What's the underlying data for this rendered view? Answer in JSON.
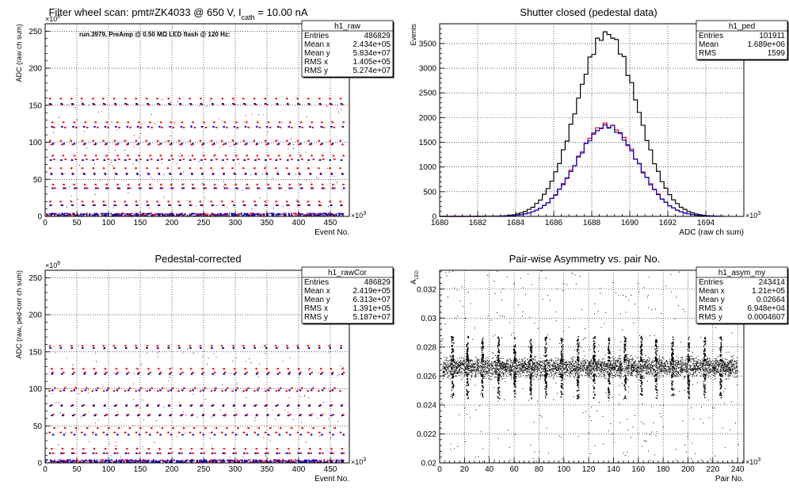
{
  "chart_data": [
    {
      "type": "scatter",
      "title": "Filter wheel scan: pmt#ZK4033 @   650 V, I",
      "title_sub": "cath",
      "title_tail": " = 10.00 nA",
      "annotation": "run.3979, PreAmp @ 0.50 MΩ LED flash @  120 Hz:",
      "xlabel": "Event No.",
      "ylabel": "ADC (raw ch sum)",
      "x_exponent": "×10",
      "x_exponent_power": "3",
      "y_exponent": "×10",
      "y_exponent_power": "6",
      "xlim": [
        0,
        480
      ],
      "ylim": [
        0,
        260
      ],
      "xticks": [
        "0",
        "50",
        "100",
        "150",
        "200",
        "250",
        "300",
        "350",
        "400",
        "450"
      ],
      "yticks": [
        "0",
        "50",
        "100",
        "150",
        "200",
        "250"
      ],
      "grid": true,
      "stats": {
        "name": "h1_raw",
        "rows": [
          {
            "label": "Entries",
            "value": "486829"
          },
          {
            "label": "Mean x",
            "value": "2.434e+05"
          },
          {
            "label": "Mean y",
            "value": "5.834e+07"
          },
          {
            "label": "RMS x",
            "value": "1.405e+05"
          },
          {
            "label": "RMS y",
            "value": "5.274e+07"
          }
        ]
      },
      "levels_red": [
        159,
        151,
        127,
        120,
        102,
        97,
        82,
        77,
        65,
        58,
        43,
        38,
        20,
        15
      ],
      "levels_blue": [
        152,
        121,
        98,
        76,
        57,
        38,
        15,
        3
      ],
      "series_colors": {
        "red": "#ff0000",
        "blue": "#0000cc"
      }
    },
    {
      "type": "line",
      "title": "Shutter closed (pedestal data)",
      "xlabel": "ADC (raw ch sum)",
      "ylabel": "Events",
      "x_exponent": "×10",
      "x_exponent_power": "3",
      "xlim": [
        1680,
        1696
      ],
      "ylim": [
        0,
        3900
      ],
      "xticks": [
        "1680",
        "1682",
        "1684",
        "1686",
        "1688",
        "1690",
        "1692",
        "1694"
      ],
      "yticks": [
        "0",
        "500",
        "1000",
        "1500",
        "2000",
        "2500",
        "3000",
        "3500"
      ],
      "grid": true,
      "stats": {
        "name": "h1_ped",
        "rows": [
          {
            "label": "Entries",
            "value": "101911"
          },
          {
            "label": "Mean",
            "value": "1.689e+06"
          },
          {
            "label": "RMS",
            "value": "1599"
          }
        ]
      },
      "series": [
        {
          "color": "#000000",
          "mean": 1688.8,
          "sigma": 1.6,
          "peak": 3700
        },
        {
          "color": "#ff0000",
          "mean": 1688.8,
          "sigma": 1.6,
          "peak": 1850
        },
        {
          "color": "#0000cc",
          "mean": 1688.8,
          "sigma": 1.6,
          "peak": 1830
        }
      ]
    },
    {
      "type": "scatter",
      "title": "Pedestal-corrected",
      "xlabel": "Event No.",
      "ylabel": "ADC (raw, ped-corr ch sum)",
      "x_exponent": "×10",
      "x_exponent_power": "3",
      "y_exponent": "×10",
      "y_exponent_power": "6",
      "xlim": [
        0,
        480
      ],
      "ylim": [
        0,
        260
      ],
      "xticks": [
        "0",
        "50",
        "100",
        "150",
        "200",
        "250",
        "300",
        "350",
        "400",
        "450"
      ],
      "yticks": [
        "0",
        "50",
        "100",
        "150",
        "200",
        "250"
      ],
      "grid": true,
      "stats": {
        "name": "h1_rawCor",
        "rows": [
          {
            "label": "Entries",
            "value": "486829"
          },
          {
            "label": "Mean x",
            "value": "2.419e+05"
          },
          {
            "label": "Mean y",
            "value": "6.313e+07"
          },
          {
            "label": "RMS x",
            "value": "1.391e+05"
          },
          {
            "label": "RMS y",
            "value": "5.187e+07"
          }
        ]
      },
      "levels_red": [
        158,
        127,
        122,
        101,
        97,
        78,
        65,
        47,
        41,
        19,
        13
      ],
      "levels_blue": [
        155,
        120,
        98,
        77,
        64,
        38,
        13,
        2
      ],
      "series_colors": {
        "red": "#ff0000",
        "blue": "#0000cc"
      }
    },
    {
      "type": "scatter",
      "title": "Pair-wise Asymmetry vs. pair No.",
      "xlabel": "Pair No.",
      "ylabel": "A",
      "ylabel_sub": "LED",
      "x_exponent": "×10",
      "x_exponent_power": "3",
      "xlim": [
        0,
        245
      ],
      "ylim": [
        0.02,
        0.0333
      ],
      "xticks": [
        "0",
        "20",
        "40",
        "60",
        "80",
        "100",
        "120",
        "140",
        "160",
        "180",
        "200",
        "220",
        "240"
      ],
      "yticks": [
        "0.02",
        "0.022",
        "0.024",
        "0.026",
        "0.028",
        "0.03",
        "0.032"
      ],
      "grid": true,
      "stats": {
        "name": "h1_asym_my",
        "rows": [
          {
            "label": "Entries",
            "value": "243414"
          },
          {
            "label": "Mean x",
            "value": "1.21e+05"
          },
          {
            "label": "Mean y",
            "value": "0.02664"
          },
          {
            "label": "RMS x",
            "value": "6.948e+04"
          },
          {
            "label": "RMS y",
            "value": "0.0004607"
          }
        ]
      },
      "band_center": 0.02662,
      "band_halfwidth": 0.00045,
      "spike_positions": [
        10,
        22,
        34,
        47,
        60,
        73,
        85,
        98,
        111,
        124,
        136,
        149,
        162,
        174,
        187,
        200,
        213,
        226
      ]
    }
  ]
}
